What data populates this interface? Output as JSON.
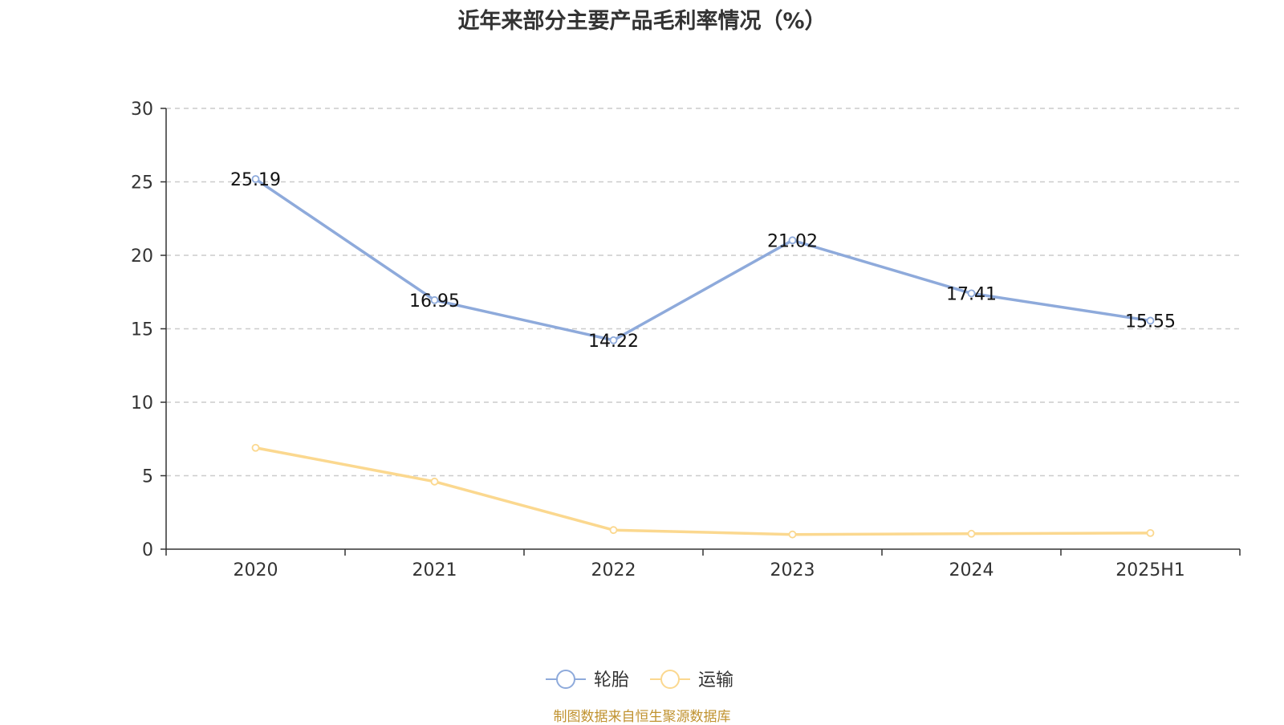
{
  "chart_data": {
    "type": "line",
    "title": "近年来部分主要产品毛利率情况（%）",
    "categories": [
      "2020",
      "2021",
      "2022",
      "2023",
      "2024",
      "2025H1"
    ],
    "series": [
      {
        "name": "轮胎",
        "values": [
          25.19,
          16.95,
          14.22,
          21.02,
          17.41,
          15.55
        ],
        "color": "#8eaadb",
        "show_labels": true
      },
      {
        "name": "运输",
        "values": [
          6.9,
          4.6,
          1.3,
          1.0,
          1.05,
          1.1
        ],
        "color": "#fbd88f",
        "show_labels": false
      }
    ],
    "ylim": [
      0,
      30
    ],
    "yticks": [
      0,
      5,
      10,
      15,
      20,
      25,
      30
    ],
    "grid": true,
    "legend_position": "bottom"
  },
  "source": {
    "text": "制图数据来自恒生聚源数据库",
    "color": "#c0922f"
  }
}
